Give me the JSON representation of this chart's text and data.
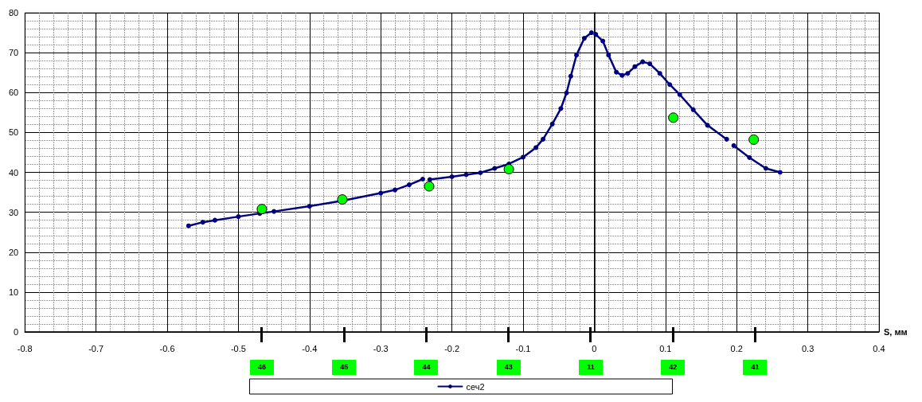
{
  "chart_data": {
    "type": "line",
    "xlabel": "S, мм",
    "xlim": [
      -0.8,
      0.4
    ],
    "xticks": [
      -0.8,
      -0.7,
      -0.6,
      -0.5,
      -0.4,
      -0.3,
      -0.2,
      -0.1,
      0,
      0.1,
      0.2,
      0.3,
      0.4
    ],
    "ylim": [
      0,
      80
    ],
    "yticks": [
      0,
      10,
      20,
      30,
      40,
      50,
      60,
      70,
      80
    ],
    "grid": true,
    "legend": "bottom",
    "series": [
      {
        "name": "сеч2",
        "color": "#000080",
        "marker": "circle",
        "x": [
          -0.57,
          -0.55,
          -0.533,
          -0.5,
          -0.47,
          -0.45,
          -0.4,
          -0.35,
          -0.3,
          -0.28,
          -0.26,
          -0.241,
          -0.236,
          -0.231,
          -0.2,
          -0.18,
          -0.16,
          -0.14,
          -0.12,
          -0.1,
          -0.082,
          -0.072,
          -0.059,
          -0.047,
          -0.039,
          -0.033,
          -0.025,
          -0.014,
          -0.004,
          -0.001,
          0.002,
          0.012,
          0.02,
          0.031,
          0.039,
          0.047,
          0.057,
          0.068,
          0.078,
          0.092,
          0.106,
          0.12,
          0.139,
          0.159,
          0.186,
          0.19,
          0.196,
          0.218,
          0.241,
          0.261
        ],
        "values": [
          26.6,
          27.5,
          28.0,
          28.9,
          29.7,
          30.2,
          31.5,
          33.0,
          34.8,
          35.6,
          36.9,
          38.3,
          null,
          38.2,
          38.9,
          39.4,
          39.9,
          41.0,
          42.1,
          43.8,
          46.2,
          48.3,
          52.1,
          56.0,
          59.9,
          64.1,
          69.4,
          73.6,
          75.0,
          null,
          74.6,
          72.9,
          69.4,
          65.1,
          64.3,
          64.8,
          66.5,
          67.7,
          67.2,
          64.8,
          62.0,
          59.5,
          55.7,
          51.8,
          48.3,
          null,
          46.7,
          43.7,
          41.0,
          40.0
        ]
      },
      {
        "type": "scatter",
        "color": "#00ff00",
        "marker": "circle",
        "x": [
          -0.467,
          -0.354,
          -0.232,
          -0.12,
          0.111,
          0.224
        ],
        "values": [
          30.8,
          33.2,
          36.5,
          40.8,
          53.7,
          48.2
        ]
      }
    ],
    "annotations": [
      "46",
      "45",
      "44",
      "43",
      "11",
      "42",
      "41"
    ]
  }
}
